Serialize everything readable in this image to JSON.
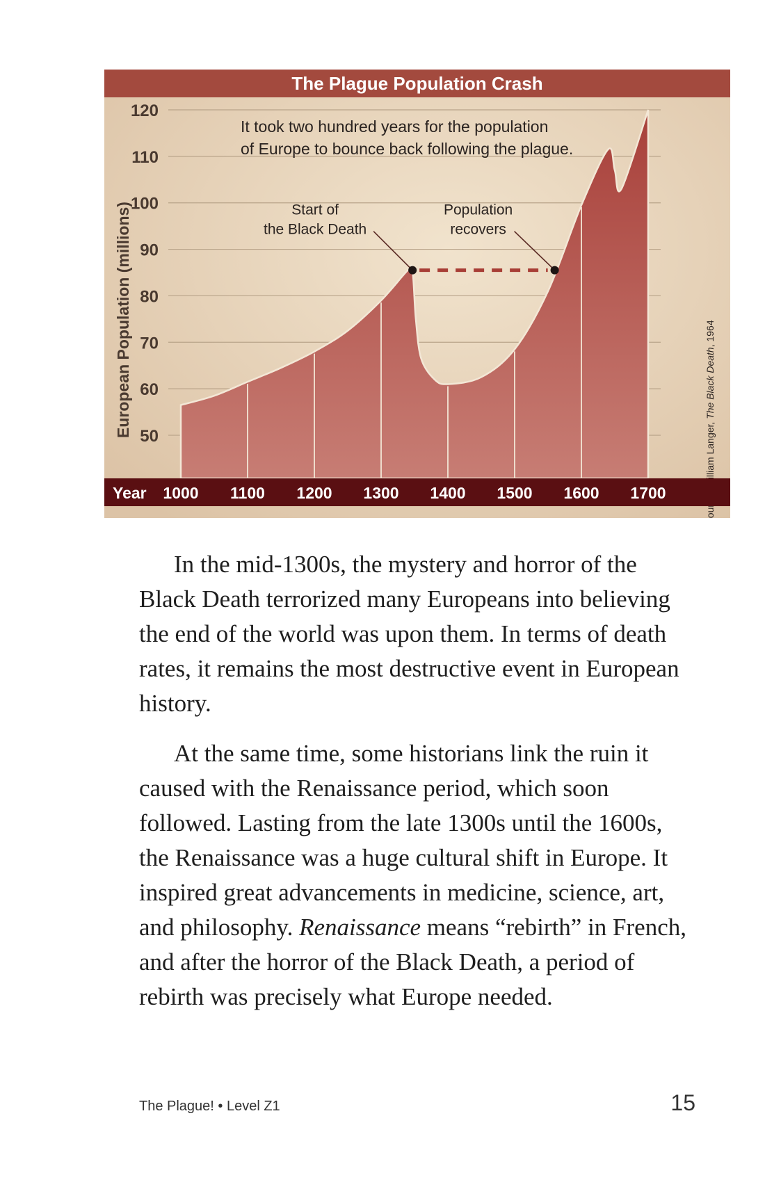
{
  "chart_data": {
    "type": "area",
    "title": "The Plague Population Crash",
    "ylabel": "European Population (millions)",
    "xlabel": "Year",
    "ylim": [
      50,
      120
    ],
    "xlim": [
      1000,
      1700
    ],
    "yticks": [
      50,
      60,
      70,
      80,
      90,
      100,
      110,
      120
    ],
    "xticks": [
      1000,
      1100,
      1200,
      1300,
      1400,
      1500,
      1600,
      1700
    ],
    "grid": true,
    "x": [
      1000,
      1050,
      1100,
      1150,
      1200,
      1250,
      1300,
      1340,
      1347,
      1352,
      1360,
      1380,
      1400,
      1450,
      1500,
      1550,
      1600,
      1640,
      1650,
      1660,
      1700
    ],
    "y": [
      56.5,
      58.5,
      61.5,
      64.5,
      68,
      72.5,
      79,
      85.5,
      85.5,
      75,
      66.5,
      62,
      61,
      62.5,
      68.5,
      81,
      99.5,
      111.5,
      107,
      103,
      120
    ],
    "annotations": {
      "note_line1": "It took two hundred years for the population",
      "note_line2": "of Europe to bounce back following the plague.",
      "start_line1": "Start of",
      "start_line2": "the Black Death",
      "recover_line1": "Population",
      "recover_line2": "recovers",
      "start_point": [
        1347,
        85.5
      ],
      "recover_point": [
        1560,
        85.5
      ]
    },
    "source_prefix": "Data source: William Langer, ",
    "source_title": "The Black Death",
    "source_year": ", 1964"
  },
  "body": {
    "p1": "In the mid-1300s, the mystery and horror of the Black Death terrorized many Europeans into believing the end of the world was upon them. In terms of death rates, it remains the most destructive event in European history.",
    "p2_before": "At the same time, some historians link the ruin it caused with the Renaissance period, which soon followed. Lasting from the late 1300s until the 1600s, the Renaissance was a huge cultural shift in Europe. It inspired great advancements in medicine, science, art, and philosophy. ",
    "p2_italic": "Renaissance",
    "p2_after": " means “rebirth” in French, and after the horror of the Black Death, a period of rebirth was precisely what Europe needed."
  },
  "footer": {
    "book": "The Plague! • Level Z1",
    "page": "15"
  },
  "colors": {
    "header_bar": "#a34a3e",
    "axis_bar": "#5a0f12",
    "area_top": "#b3473f",
    "area_bottom": "#c97a72",
    "paper": "#ead8c0",
    "marker_line": "#a83e36"
  }
}
